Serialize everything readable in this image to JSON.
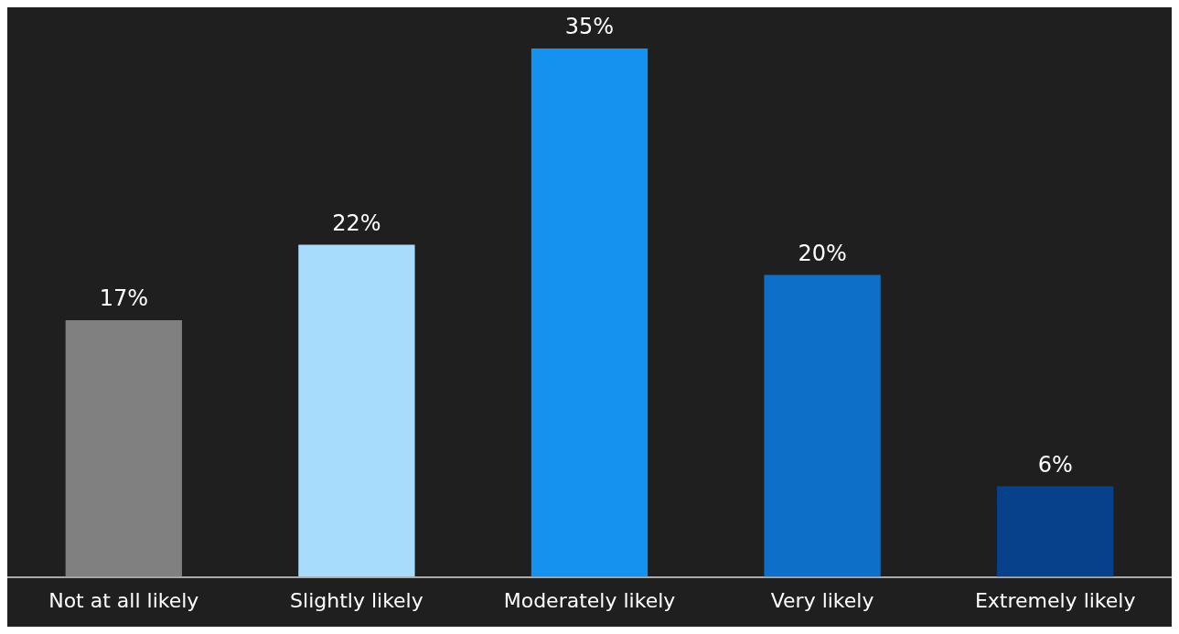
{
  "chart_data": {
    "type": "bar",
    "categories": [
      "Not at all likely",
      "Slightly likely",
      "Moderately likely",
      "Very likely",
      "Extremely likely"
    ],
    "values": [
      17,
      22,
      35,
      20,
      6
    ],
    "colors": [
      "#808080",
      "#a8dcfc",
      "#1592f0",
      "#0e6fc8",
      "#07418c"
    ],
    "value_labels": [
      "17%",
      "22%",
      "35%",
      "20%",
      "6%"
    ],
    "legend": false
  }
}
